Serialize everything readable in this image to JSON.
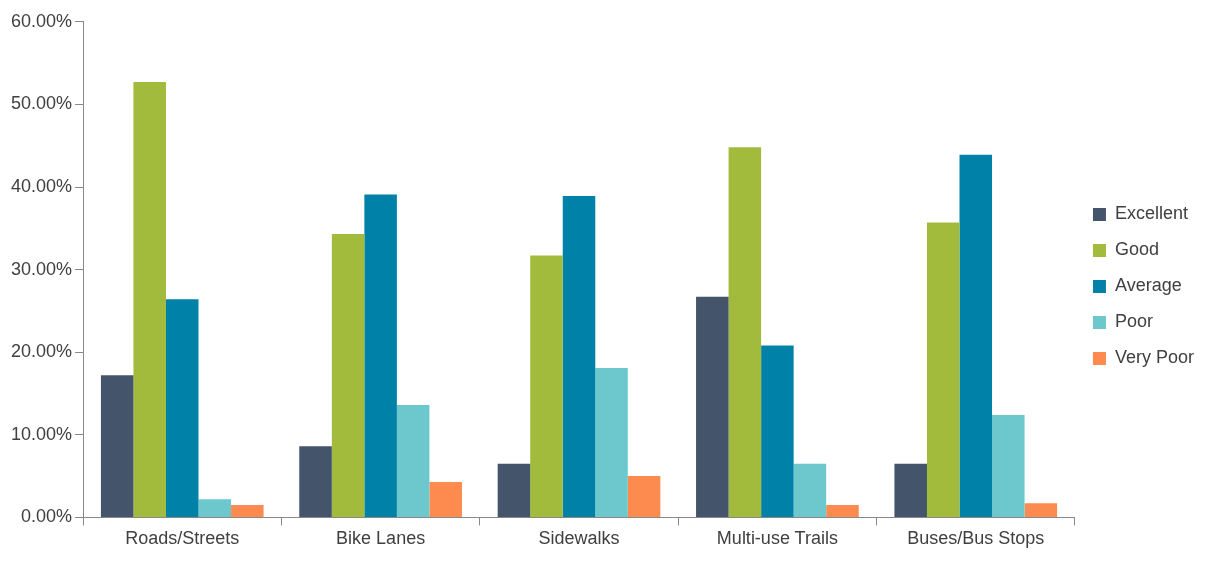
{
  "chart_data": {
    "type": "bar",
    "categories": [
      "Roads/Streets",
      "Bike Lanes",
      "Sidewalks",
      "Multi-use Trails",
      "Buses/Bus Stops"
    ],
    "series": [
      {
        "name": "Excellent",
        "color": "#44546a",
        "values": [
          17.2,
          8.6,
          6.5,
          26.7,
          6.5
        ]
      },
      {
        "name": "Good",
        "color": "#a3bb3c",
        "values": [
          52.7,
          34.3,
          31.7,
          44.8,
          35.7
        ]
      },
      {
        "name": "Average",
        "color": "#0082a8",
        "values": [
          26.4,
          39.1,
          38.9,
          20.8,
          43.9
        ]
      },
      {
        "name": "Poor",
        "color": "#6cc8cc",
        "values": [
          2.2,
          13.6,
          18.1,
          6.5,
          12.4
        ]
      },
      {
        "name": "Very Poor",
        "color": "#fd8a4f",
        "values": [
          1.5,
          4.3,
          5.0,
          1.5,
          1.7
        ]
      }
    ],
    "ylim": [
      0,
      60
    ],
    "yticks": [
      {
        "value": 0,
        "label": "0.00%"
      },
      {
        "value": 10,
        "label": "10.00%"
      },
      {
        "value": 20,
        "label": "20.00%"
      },
      {
        "value": 30,
        "label": "30.00%"
      },
      {
        "value": 40,
        "label": "40.00%"
      },
      {
        "value": 50,
        "label": "50.00%"
      },
      {
        "value": 60,
        "label": "60.00%"
      }
    ],
    "grid": false,
    "legend": "right"
  }
}
